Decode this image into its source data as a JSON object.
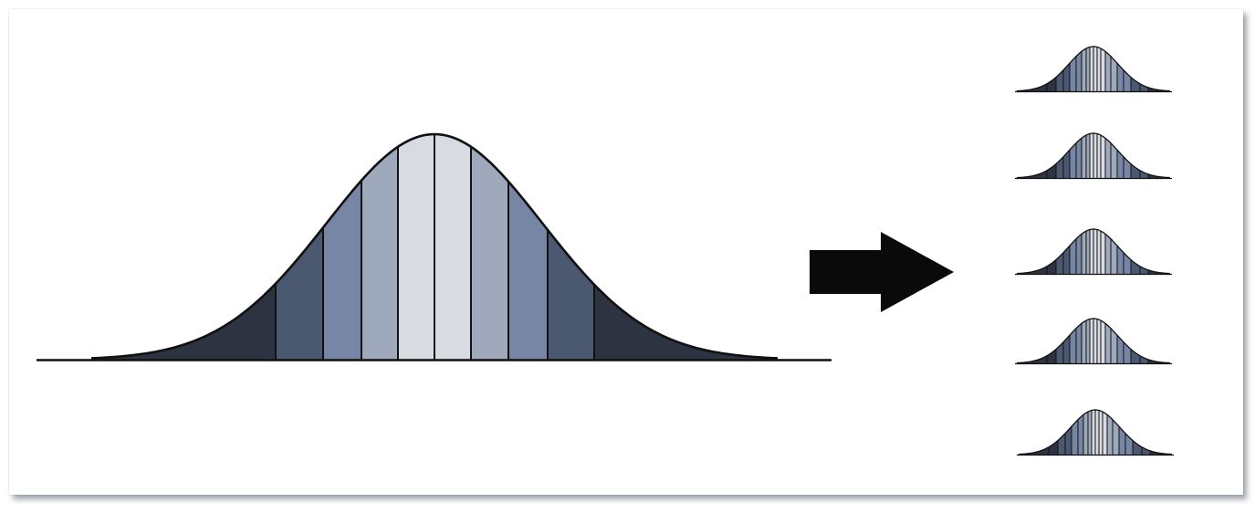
{
  "diagram": {
    "band_colors": {
      "tail": "#2d3340",
      "outer": "#4a5870",
      "middle": "#7686a4",
      "inner": "#9eaabb",
      "center": "#d8dce2"
    },
    "band_order": [
      "tail",
      "outer",
      "middle",
      "inner",
      "center",
      "center",
      "inner",
      "middle",
      "outer",
      "tail"
    ],
    "outline_color": "#111111",
    "arrow_color": "#0a0a0a",
    "small_curve_count": 5,
    "small_curve_band_order": [
      "tail",
      "tail",
      "outer",
      "outer",
      "middle",
      "middle",
      "inner",
      "inner",
      "center",
      "center",
      "center",
      "center",
      "inner",
      "inner",
      "middle",
      "middle",
      "outer",
      "outer",
      "tail",
      "tail"
    ]
  }
}
